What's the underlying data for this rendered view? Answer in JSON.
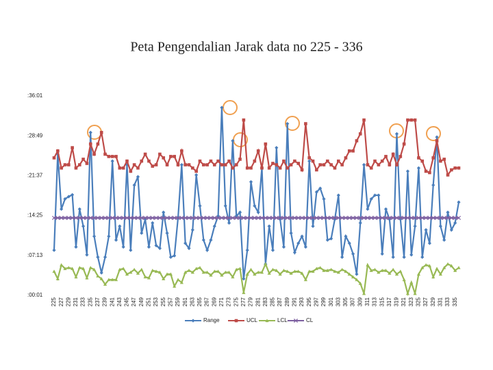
{
  "chart_data": {
    "type": "line",
    "title": "Peta Pengendalian Jarak data no 225 - 336",
    "categories": [
      "225",
      null,
      "227",
      null,
      "229",
      null,
      "231",
      null,
      "233",
      null,
      "235",
      null,
      "237",
      null,
      "239",
      null,
      "241",
      null,
      "243",
      null,
      "245",
      null,
      "247",
      null,
      "249",
      null,
      "251",
      null,
      "253",
      null,
      "255",
      null,
      "257",
      null,
      "259",
      null,
      "261",
      null,
      "263",
      null,
      "265",
      null,
      "267",
      null,
      "269",
      null,
      "271",
      null,
      "273",
      null,
      "275",
      null,
      "277",
      null,
      "279",
      null,
      "281",
      null,
      "283",
      null,
      "285",
      null,
      "287",
      null,
      "289",
      null,
      "291",
      null,
      "293",
      null,
      "295",
      null,
      "297",
      null,
      "299",
      null,
      "301",
      null,
      "303",
      null,
      "305",
      null,
      "307",
      null,
      "309",
      null,
      "311",
      null,
      "313",
      null,
      "315",
      null,
      "317",
      null,
      "319",
      null,
      "321",
      null,
      "323",
      null,
      "325",
      null,
      "327",
      null,
      "329",
      null,
      "331",
      null,
      "333",
      null,
      "335",
      null
    ],
    "series": [
      {
        "name": "Range",
        "color": "#4a7ebb",
        "marker": "diamond",
        "values": [
          490,
          1530,
          935,
          1045,
          1070,
          1090,
          525,
          935,
          750,
          440,
          1765,
          640,
          415,
          245,
          415,
          640,
          1455,
          600,
          750,
          525,
          1415,
          490,
          1195,
          1285,
          675,
          825,
          525,
          785,
          540,
          510,
          900,
          675,
          415,
          430,
          840,
          1415,
          565,
          510,
          710,
          1305,
          970,
          600,
          490,
          600,
          750,
          860,
          2035,
          970,
          785,
          1675,
          860,
          900,
          180,
          490,
          1230,
          970,
          900,
          1380,
          340,
          750,
          490,
          1600,
          825,
          525,
          1860,
          675,
          465,
          565,
          640,
          525,
          1455,
          750,
          1120,
          1160,
          1045,
          600,
          615,
          825,
          1085,
          415,
          640,
          565,
          450,
          230,
          785,
          1415,
          935,
          1045,
          1085,
          1085,
          450,
          935,
          825,
          415,
          1750,
          825,
          415,
          1345,
          440,
          750,
          1380,
          415,
          710,
          565,
          1195,
          1715,
          750,
          600,
          900,
          710,
          785,
          1010
        ]
      },
      {
        "name": "UCL",
        "color": "#be4b48",
        "marker": "square",
        "values": [
          1490,
          1565,
          1380,
          1415,
          1415,
          1600,
          1380,
          1415,
          1475,
          1430,
          1640,
          1530,
          1640,
          1765,
          1530,
          1505,
          1505,
          1505,
          1380,
          1380,
          1455,
          1345,
          1415,
          1380,
          1455,
          1530,
          1455,
          1400,
          1415,
          1530,
          1490,
          1415,
          1505,
          1505,
          1415,
          1565,
          1415,
          1415,
          1380,
          1345,
          1455,
          1415,
          1415,
          1455,
          1415,
          1455,
          1415,
          1415,
          1455,
          1380,
          1415,
          1475,
          1900,
          1380,
          1380,
          1455,
          1565,
          1380,
          1640,
          1380,
          1430,
          1415,
          1380,
          1455,
          1380,
          1415,
          1455,
          1430,
          1360,
          1860,
          1490,
          1455,
          1360,
          1415,
          1415,
          1455,
          1415,
          1380,
          1455,
          1415,
          1490,
          1565,
          1565,
          1675,
          1750,
          1900,
          1415,
          1380,
          1455,
          1415,
          1455,
          1505,
          1415,
          1530,
          1415,
          1505,
          1640,
          1900,
          1900,
          1900,
          1490,
          1455,
          1345,
          1330,
          1490,
          1675,
          1455,
          1475,
          1305,
          1360,
          1380,
          1380
        ]
      },
      {
        "name": "LCL",
        "color": "#98b954",
        "marker": "triangle",
        "values": [
          260,
          180,
          330,
          290,
          300,
          290,
          200,
          300,
          290,
          190,
          300,
          280,
          210,
          180,
          120,
          170,
          170,
          170,
          280,
          290,
          230,
          250,
          280,
          240,
          280,
          200,
          190,
          270,
          260,
          250,
          180,
          230,
          230,
          100,
          170,
          140,
          250,
          270,
          250,
          290,
          300,
          250,
          250,
          220,
          260,
          260,
          220,
          250,
          250,
          200,
          280,
          290,
          30,
          230,
          280,
          230,
          250,
          250,
          340,
          240,
          280,
          270,
          230,
          270,
          260,
          240,
          260,
          260,
          240,
          170,
          260,
          260,
          290,
          300,
          270,
          270,
          280,
          260,
          250,
          280,
          260,
          230,
          200,
          170,
          130,
          20,
          330,
          270,
          280,
          250,
          270,
          270,
          240,
          280,
          230,
          260,
          170,
          20,
          140,
          20,
          230,
          300,
          330,
          320,
          200,
          290,
          230,
          300,
          340,
          320,
          270,
          300
        ]
      },
      {
        "name": "CL",
        "color": "#7d5fa0",
        "marker": "x",
        "values": [
          840,
          840,
          840,
          840,
          840,
          840,
          840,
          840,
          840,
          840,
          840,
          840,
          840,
          840,
          840,
          840,
          840,
          840,
          840,
          840,
          840,
          840,
          840,
          840,
          840,
          840,
          840,
          840,
          840,
          840,
          840,
          840,
          840,
          840,
          840,
          840,
          840,
          840,
          840,
          840,
          840,
          840,
          840,
          840,
          840,
          840,
          840,
          840,
          840,
          840,
          840,
          840,
          840,
          840,
          840,
          840,
          840,
          840,
          840,
          840,
          840,
          840,
          840,
          840,
          840,
          840,
          840,
          840,
          840,
          840,
          840,
          840,
          840,
          840,
          840,
          840,
          840,
          840,
          840,
          840,
          840,
          840,
          840,
          840,
          840,
          840,
          840,
          840,
          840,
          840,
          840,
          840,
          840,
          840,
          840,
          840,
          840,
          840,
          840,
          840,
          840,
          840,
          840,
          840,
          840,
          840,
          840,
          840,
          840,
          840,
          840,
          840
        ]
      }
    ],
    "ylim": [
      1,
      2161
    ],
    "yticks": [
      {
        "value": 1,
        "label": ":00:01"
      },
      {
        "value": 433,
        "label": ":07:13"
      },
      {
        "value": 865,
        "label": ":14:25"
      },
      {
        "value": 1297,
        "label": ":21:37"
      },
      {
        "value": 1729,
        "label": ":28:49"
      },
      {
        "value": 2161,
        "label": ":36:01"
      }
    ],
    "grid": false,
    "legend": "bottom"
  }
}
